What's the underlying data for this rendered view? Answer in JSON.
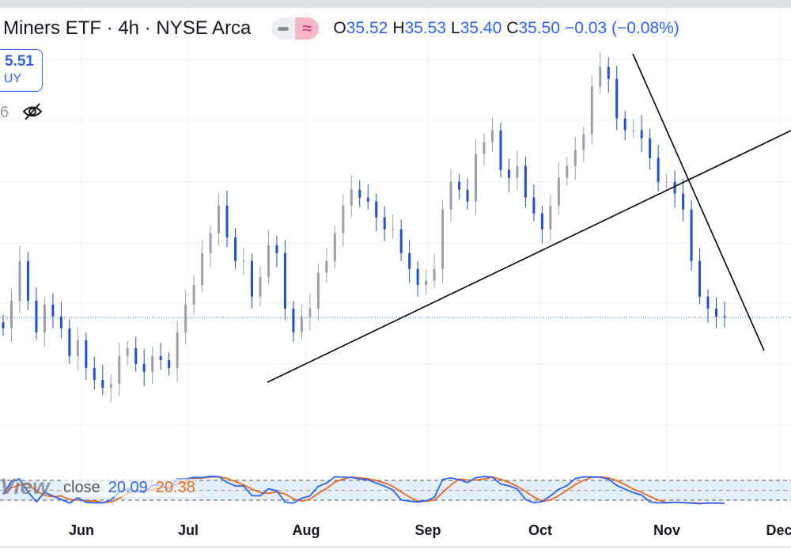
{
  "header": {
    "title": "Miners ETF · 4h · NYSE Arca",
    "toggle_icons": [
      "minus-icon",
      "approx-icon"
    ],
    "approx_glyph": "≈",
    "ohlc": {
      "o_label": "O",
      "o": "35.52",
      "h_label": "H",
      "h": "35.53",
      "l_label": "L",
      "l": "35.40",
      "c_label": "C",
      "c": "35.50",
      "change": "−0.03 (−0.08%)"
    }
  },
  "buy_button": {
    "price": "5.51",
    "label": "UY"
  },
  "indicator_row": {
    "value_fragment": "6",
    "icon": "eye-off-icon"
  },
  "stochastic": {
    "label": "close",
    "watermark": "View",
    "k_value": "20.09",
    "d_value": "20.38",
    "k_color": "#2962ff",
    "d_color": "#f0661a",
    "upper_band": 80,
    "lower_band": 20
  },
  "colors": {
    "up": "#9aa0ab",
    "down": "#1f4fd6",
    "price_line": "#2962ff"
  },
  "chart_data": {
    "type": "candlestick",
    "title": "Miners ETF · 4h · NYSE Arca",
    "x_ticks": [
      "Jun",
      "Jul",
      "Aug",
      "Sep",
      "Oct",
      "Nov",
      "Dec"
    ],
    "current_price": 35.51,
    "ylim": [
      31.5,
      45.5
    ],
    "closes": [
      35.15,
      36.06,
      37.36,
      36.06,
      35.02,
      35.93,
      35.54,
      35.15,
      34.24,
      34.76,
      33.85,
      33.46,
      33.2,
      33.33,
      34.24,
      34.5,
      33.98,
      33.72,
      34.24,
      34.11,
      33.85,
      35.02,
      35.93,
      36.58,
      37.62,
      38.27,
      39.18,
      38.14,
      37.36,
      37.36,
      36.19,
      36.84,
      37.88,
      37.62,
      35.8,
      35.02,
      35.54,
      35.8,
      36.97,
      37.36,
      38.27,
      39.18,
      39.7,
      39.44,
      39.31,
      38.79,
      38.4,
      38.4,
      37.62,
      37.1,
      36.58,
      36.71,
      37.1,
      39.05,
      39.96,
      39.7,
      39.31,
      40.87,
      41.26,
      41.65,
      40.35,
      40.09,
      40.48,
      39.44,
      38.92,
      38.4,
      39.18,
      40.09,
      40.48,
      41.0,
      41.52,
      43.08,
      43.73,
      43.34,
      42.04,
      41.65,
      41.65,
      41.39,
      40.74,
      39.96,
      39.96,
      39.57,
      39.05,
      37.36,
      36.19,
      35.8,
      35.54,
      35.5
    ]
  }
}
